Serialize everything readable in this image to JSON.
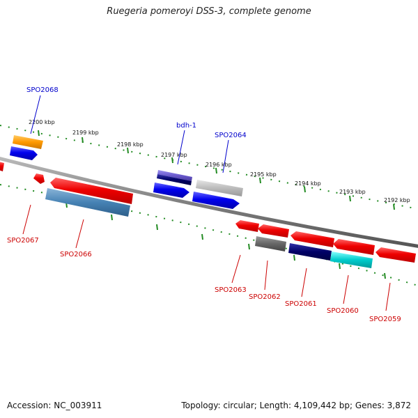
{
  "title": "Ruegeria pomeroyi DSS-3, complete genome",
  "footer": {
    "accession": "Accession: NC_003911",
    "stats": "Topology: circular; Length: 4,109,442 bp; Genes: 3,872"
  },
  "tick_labels": [
    "2200 kbp",
    "2199 kbp",
    "2198 kbp",
    "2197 kbp",
    "2196 kbp",
    "2195 kbp",
    "2194 kbp",
    "2193 kbp",
    "2192 kbp"
  ],
  "genes_top": [
    {
      "label": "SPO2068",
      "color": "#0000cc"
    },
    {
      "label": "bdh-1",
      "color": "#0000cc"
    },
    {
      "label": "SPO2064",
      "color": "#0000cc"
    }
  ],
  "genes_bottom": [
    {
      "label": "SPO2067",
      "color": "#cc0000"
    },
    {
      "label": "SPO2066",
      "color": "#cc0000"
    },
    {
      "label": "SPO2063",
      "color": "#cc0000"
    },
    {
      "label": "SPO2062",
      "color": "#cc0000"
    },
    {
      "label": "SPO2061",
      "color": "#cc0000"
    },
    {
      "label": "SPO2060",
      "color": "#cc0000"
    },
    {
      "label": "SPO2059",
      "color": "#cc0000"
    }
  ],
  "colors": {
    "backbone": "#808080",
    "ticks": "#228b22",
    "forward_gene": "#0000ee",
    "reverse_gene": "#ee0000",
    "orange_gene": "#ff9900",
    "steelblue_gene": "#4682b4",
    "navy_gene": "#000066",
    "cyan_gene": "#00cccc",
    "gray_gene": "#666666",
    "lightgray_gene": "#bbbbbb",
    "slateblue_gene": "#6a5acd"
  }
}
